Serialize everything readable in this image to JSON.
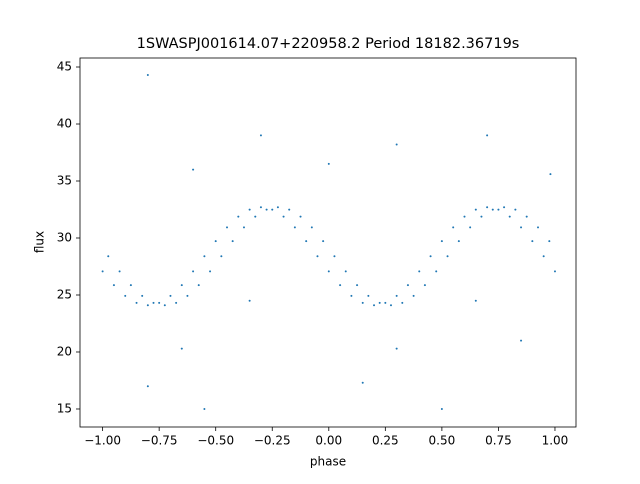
{
  "chart_data": {
    "type": "scatter",
    "title": "1SWASPJ001614.07+220958.2 Period 18182.36719s",
    "x_label": "phase",
    "y_label": "flux",
    "xlim": [
      -1.1,
      1.093
    ],
    "ylim": [
      13.42,
      45.79
    ],
    "xticks": [
      {
        "value": -1,
        "label": "−1.00"
      },
      {
        "value": -0.75,
        "label": "−0.75"
      },
      {
        "value": -0.5,
        "label": "−0.50"
      },
      {
        "value": -0.25,
        "label": "−0.25"
      },
      {
        "value": 0,
        "label": "0.00"
      },
      {
        "value": 0.25,
        "label": "0.25"
      },
      {
        "value": 0.5,
        "label": "0.50"
      },
      {
        "value": 0.75,
        "label": "0.75"
      },
      {
        "value": 1,
        "label": "1.00"
      }
    ],
    "yticks": [
      15,
      20,
      25,
      30,
      35,
      40,
      45
    ],
    "series": [
      {
        "color": "#1f77b4",
        "x": [
          -1,
          -0.95,
          -0.9,
          -0.85,
          -0.8,
          -0.75,
          -0.7,
          -0.65,
          -0.6,
          -0.55,
          -0.5,
          -0.45,
          -0.4,
          -0.35,
          -0.3,
          -0.25,
          -0.2,
          -0.15,
          -0.1,
          -0.05,
          0,
          0.05,
          0.1,
          0.15,
          0.2,
          0.25,
          0.3,
          0.35,
          0.4,
          0.45,
          0.5,
          0.55,
          0.6,
          0.65,
          0.7,
          0.75,
          0.8,
          0.85,
          0.9,
          0.95,
          1,
          -0.975,
          -0.925,
          -0.875,
          -0.825,
          -0.775,
          -0.725,
          -0.675,
          -0.625,
          -0.575,
          -0.525,
          -0.475,
          -0.425,
          -0.375,
          -0.325,
          -0.275,
          -0.225,
          -0.175,
          -0.125,
          -0.075,
          -0.025,
          0.025,
          0.075,
          0.125,
          0.175,
          0.225,
          0.275,
          0.325,
          0.375,
          0.425,
          0.475,
          0.525,
          0.575,
          0.625,
          0.675,
          0.725,
          0.775,
          0.825,
          0.875,
          0.925,
          0.975,
          -0.8,
          0.3,
          -0.3,
          0.7,
          -0.65,
          0.3,
          0.5,
          -0.55,
          0.15,
          -0.8,
          0.98,
          -0.6,
          0,
          -0.35,
          0.65,
          0.85
        ],
        "values": [
          27.07,
          25.87,
          24.92,
          24.31,
          24.1,
          24.31,
          24.92,
          25.87,
          27.07,
          28.4,
          29.73,
          30.93,
          31.88,
          32.49,
          32.7,
          32.49,
          31.88,
          30.93,
          29.73,
          28.4,
          27.07,
          25.87,
          24.92,
          24.31,
          24.1,
          24.31,
          24.92,
          25.87,
          27.07,
          28.4,
          29.73,
          30.93,
          31.88,
          32.49,
          32.7,
          32.49,
          31.88,
          30.93,
          29.73,
          28.4,
          27.07,
          28.4,
          27.07,
          25.87,
          24.92,
          24.31,
          24.1,
          24.31,
          24.92,
          25.87,
          27.07,
          28.4,
          29.73,
          30.93,
          31.88,
          32.49,
          32.7,
          32.49,
          31.88,
          30.93,
          29.73,
          28.4,
          27.07,
          25.87,
          24.92,
          24.31,
          24.1,
          24.31,
          24.92,
          25.87,
          27.07,
          28.4,
          29.73,
          30.93,
          31.88,
          32.49,
          32.7,
          32.49,
          31.88,
          30.93,
          29.73,
          44.3,
          38.2,
          39,
          39,
          20.3,
          20.3,
          15,
          15,
          17.3,
          17,
          35.6,
          36,
          36.5,
          24.5,
          24.5,
          21
        ]
      }
    ]
  }
}
